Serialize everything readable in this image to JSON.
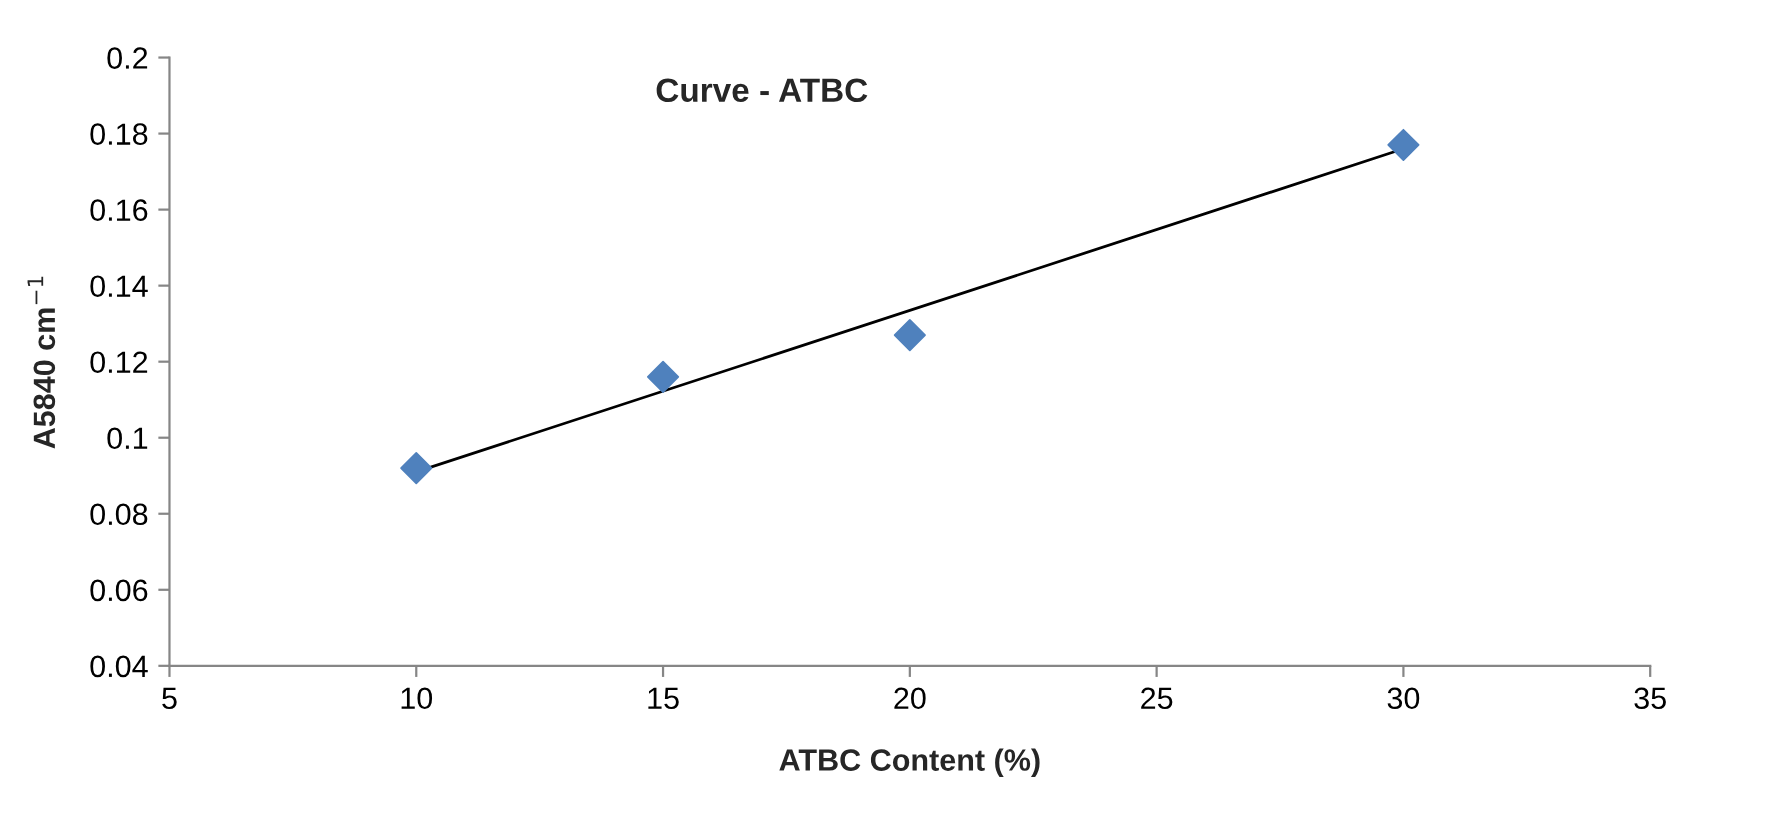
{
  "chart_data": {
    "type": "scatter",
    "title": "Curve - ATBC",
    "xlabel": "ATBC Content (%)",
    "ylabel": "A5840 cm$^{−1}$",
    "series": [
      {
        "color": "#4f81bd",
        "marker": "diamond",
        "x": [
          10,
          15,
          20,
          30
        ],
        "values": [
          0.092,
          0.116,
          0.127,
          0.177
        ]
      },
      {
        "type": "line",
        "color": "#000000",
        "marker": "none",
        "line_style": "solid",
        "x": [
          10,
          30
        ],
        "values": [
          0.091,
          0.176
        ]
      }
    ],
    "xlim": [
      5,
      35
    ],
    "xticks": [
      5,
      10,
      15,
      20,
      25,
      30,
      35
    ],
    "ylim": [
      0.04,
      0.2
    ],
    "yticks": [
      0.04,
      0.06,
      0.08,
      0.1,
      0.12,
      0.14,
      0.16,
      0.18,
      0.2
    ],
    "grid": false,
    "legend": false
  }
}
